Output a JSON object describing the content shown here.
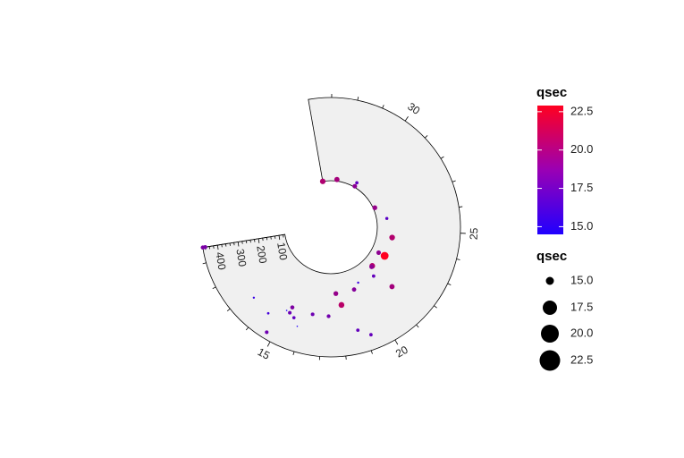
{
  "chart_data": {
    "type": "scatter",
    "coord": "polar-partial",
    "angle_axis": {
      "ticks": [
        15,
        20,
        25,
        30
      ],
      "tick_labels": [
        "15",
        "20",
        "25",
        "30"
      ],
      "range": [
        10.4,
        33.9
      ]
    },
    "radius_axis": {
      "ticks": [
        100,
        200,
        300,
        400
      ],
      "tick_labels": [
        "100",
        "200",
        "300",
        "400"
      ],
      "range": [
        71.1,
        472
      ]
    },
    "grid": false,
    "panel_fill": "#f0f0f0",
    "color_legend": {
      "title": "qsec",
      "breaks": [
        15.0,
        17.5,
        20.0,
        22.5
      ],
      "labels": [
        "15.0",
        "17.5",
        "20.0",
        "22.5"
      ],
      "low_color": "#2000ff",
      "high_color": "#ff0020",
      "limits": [
        14.5,
        22.9
      ]
    },
    "size_legend": {
      "title": "qsec",
      "breaks": [
        15.0,
        17.5,
        20.0,
        22.5
      ],
      "labels": [
        "15.0",
        "17.5",
        "20.0",
        "22.5"
      ]
    },
    "points": [
      {
        "x": 21.0,
        "y": 160,
        "qsec": 16.46
      },
      {
        "x": 21.0,
        "y": 160,
        "qsec": 17.02
      },
      {
        "x": 22.8,
        "y": 108,
        "qsec": 18.61
      },
      {
        "x": 21.4,
        "y": 258,
        "qsec": 19.44
      },
      {
        "x": 18.7,
        "y": 360,
        "qsec": 17.02
      },
      {
        "x": 18.1,
        "y": 225,
        "qsec": 20.22
      },
      {
        "x": 14.3,
        "y": 360,
        "qsec": 15.84
      },
      {
        "x": 24.4,
        "y": 146.7,
        "qsec": 20.0
      },
      {
        "x": 22.8,
        "y": 140.8,
        "qsec": 22.9
      },
      {
        "x": 19.2,
        "y": 167.6,
        "qsec": 18.3
      },
      {
        "x": 17.8,
        "y": 167.6,
        "qsec": 18.9
      },
      {
        "x": 16.4,
        "y": 275.8,
        "qsec": 17.4
      },
      {
        "x": 17.3,
        "y": 275.8,
        "qsec": 17.6
      },
      {
        "x": 15.2,
        "y": 275.8,
        "qsec": 18.0
      },
      {
        "x": 10.4,
        "y": 472,
        "qsec": 17.98
      },
      {
        "x": 10.4,
        "y": 460,
        "qsec": 17.82
      },
      {
        "x": 14.7,
        "y": 440,
        "qsec": 17.42
      },
      {
        "x": 32.4,
        "y": 78.7,
        "qsec": 19.47
      },
      {
        "x": 30.4,
        "y": 75.7,
        "qsec": 18.52
      },
      {
        "x": 33.9,
        "y": 71.1,
        "qsec": 19.9
      },
      {
        "x": 21.5,
        "y": 120.1,
        "qsec": 20.01
      },
      {
        "x": 15.5,
        "y": 318,
        "qsec": 16.87
      },
      {
        "x": 15.2,
        "y": 304,
        "qsec": 17.3
      },
      {
        "x": 13.3,
        "y": 350,
        "qsec": 15.41
      },
      {
        "x": 19.2,
        "y": 400,
        "qsec": 17.05
      },
      {
        "x": 27.3,
        "y": 79,
        "qsec": 18.9
      },
      {
        "x": 26.0,
        "y": 120.3,
        "qsec": 16.7
      },
      {
        "x": 30.4,
        "y": 95.1,
        "qsec": 16.9
      },
      {
        "x": 15.8,
        "y": 351,
        "qsec": 14.5
      },
      {
        "x": 19.7,
        "y": 145,
        "qsec": 15.5
      },
      {
        "x": 15.0,
        "y": 301,
        "qsec": 14.6
      },
      {
        "x": 21.4,
        "y": 121,
        "qsec": 18.6
      }
    ]
  }
}
